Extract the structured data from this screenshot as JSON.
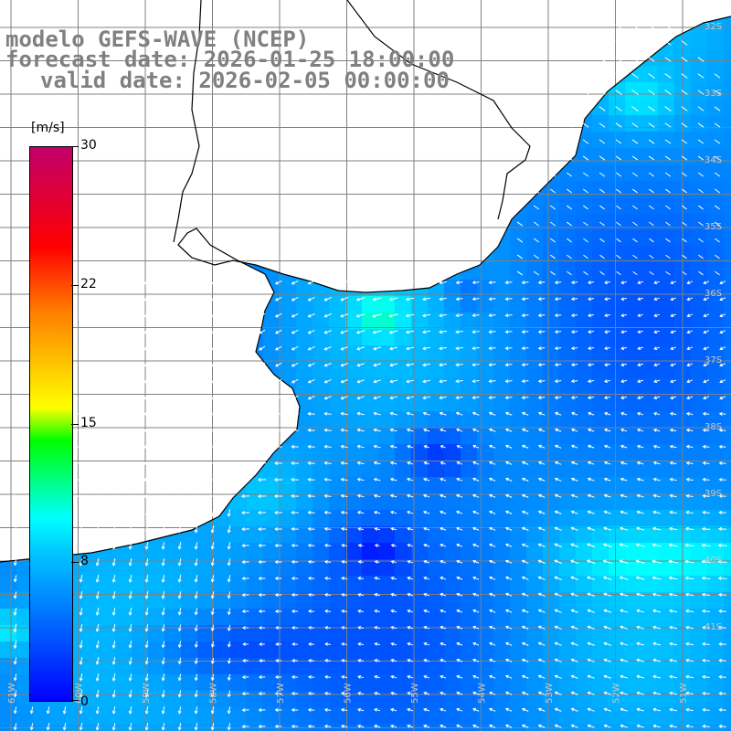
{
  "header": {
    "line1": "modelo GEFS-WAVE (NCEP)",
    "line2": "forecast date: 2026-01-25 18:00:00",
    "line3": "valid date: 2026-02-05 00:00:00"
  },
  "colorbar": {
    "unit_label": "[m/s]",
    "ticks": [
      "30",
      "22",
      "15",
      "8",
      "0"
    ],
    "colors": [
      "#0000ff",
      "#00c8ff",
      "#00ffff",
      "#00ff00",
      "#ffff00",
      "#ff8000",
      "#ff0000",
      "#c0006a"
    ]
  },
  "lat_labels": [
    "32S",
    "33S",
    "34S",
    "35S",
    "36S",
    "37S",
    "38S",
    "39S",
    "40S",
    "41S"
  ],
  "lon_labels": [
    "61W",
    "60W",
    "59W",
    "58W",
    "57W",
    "56W",
    "55W",
    "54W",
    "53W",
    "52W",
    "51W"
  ],
  "map": {
    "field": "wind speed",
    "land_color": "#ffffff",
    "grid_color": "#808080",
    "coast_color": "#000000",
    "arrow_color": "#ffffff"
  }
}
